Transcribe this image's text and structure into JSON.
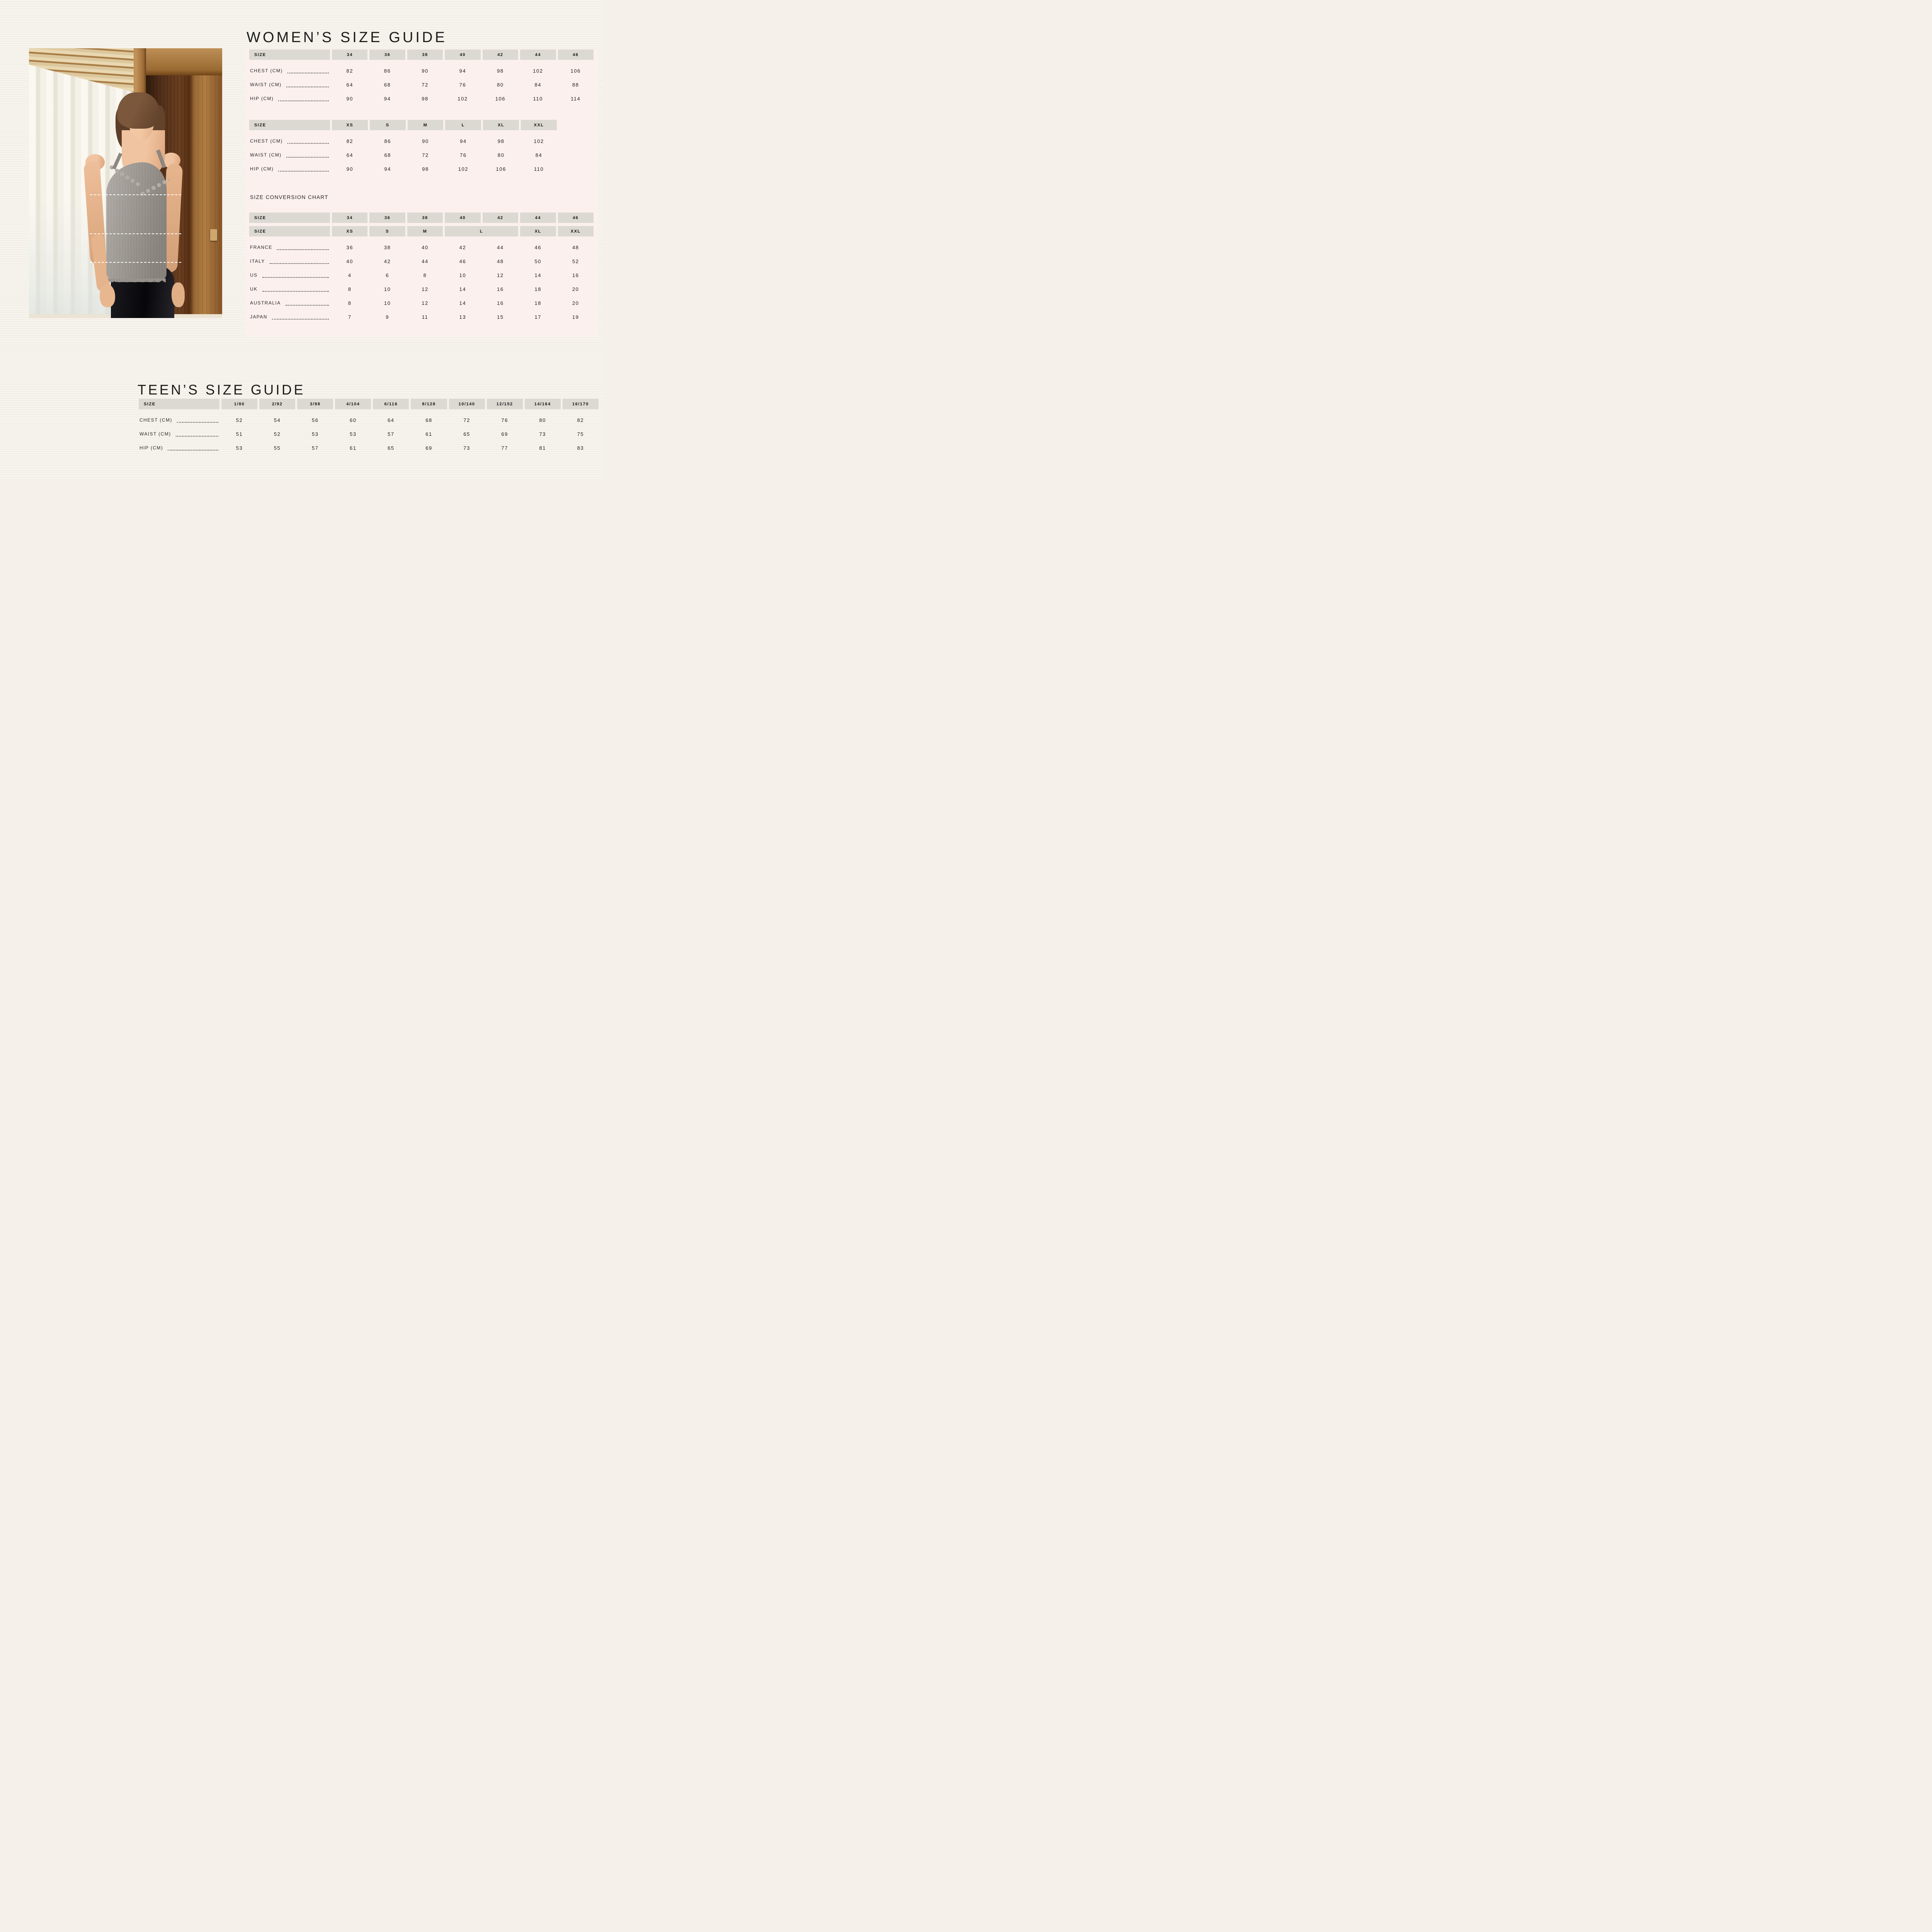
{
  "colors": {
    "page_bg": "#f5f1ea",
    "panel_bg": "#fbf0ee",
    "header_cell_bg": "#dcd9d3",
    "text": "#1d1d1b",
    "measure_line": "#ffffff"
  },
  "womens": {
    "title": "WOMEN’S SIZE GUIDE",
    "numeric_table": {
      "head": [
        [
          "SIZE",
          "34",
          "36",
          "38",
          "40",
          "42",
          "44",
          "46"
        ]
      ],
      "rows": [
        {
          "label": "CHEST (CM)",
          "values": [
            "82",
            "86",
            "90",
            "94",
            "98",
            "102",
            "106"
          ]
        },
        {
          "label": "WAIST (CM)",
          "values": [
            "64",
            "68",
            "72",
            "76",
            "80",
            "84",
            "88"
          ]
        },
        {
          "label": "HIP (CM)",
          "values": [
            "90",
            "94",
            "98",
            "102",
            "106",
            "110",
            "114"
          ]
        }
      ]
    },
    "alpha_table": {
      "head": [
        [
          "SIZE",
          "XS",
          "S",
          "M",
          "L",
          "XL",
          "XXL"
        ]
      ],
      "rows": [
        {
          "label": "CHEST (CM)",
          "values": [
            "82",
            "86",
            "90",
            "94",
            "98",
            "102"
          ]
        },
        {
          "label": "WAIST (CM)",
          "values": [
            "64",
            "68",
            "72",
            "76",
            "80",
            "84"
          ]
        },
        {
          "label": "HIP (CM)",
          "values": [
            "90",
            "94",
            "98",
            "102",
            "106",
            "110"
          ]
        }
      ]
    },
    "conversion": {
      "label": "SIZE CONVERSION CHART",
      "table": {
        "head": [
          [
            "SIZE",
            "34",
            "36",
            "38",
            "40",
            "42",
            "44",
            "46"
          ],
          [
            "SIZE",
            "XS",
            "S",
            "M",
            {
              "t": "L",
              "s": 2
            },
            "XL",
            "XXL"
          ]
        ],
        "rows": [
          {
            "label": "FRANCE",
            "values": [
              "36",
              "38",
              "40",
              "42",
              "44",
              "46",
              "48"
            ]
          },
          {
            "label": "ITALY",
            "values": [
              "40",
              "42",
              "44",
              "46",
              "48",
              "50",
              "52"
            ]
          },
          {
            "label": "US",
            "values": [
              "4",
              "6",
              "8",
              "10",
              "12",
              "14",
              "16"
            ]
          },
          {
            "label": "UK",
            "values": [
              "8",
              "10",
              "12",
              "14",
              "16",
              "18",
              "20"
            ]
          },
          {
            "label": "AUSTRALIA",
            "values": [
              "8",
              "10",
              "12",
              "14",
              "16",
              "18",
              "20"
            ]
          },
          {
            "label": "JAPAN",
            "values": [
              "7",
              "9",
              "11",
              "13",
              "15",
              "17",
              "19"
            ]
          }
        ]
      }
    }
  },
  "teens": {
    "title": "TEEN’S SIZE GUIDE",
    "table": {
      "head": [
        [
          "SIZE",
          "1/80",
          "2/92",
          "3/98",
          "4/104",
          "6/116",
          "8/128",
          "10/140",
          "12/152",
          "14/164",
          "16/170"
        ]
      ],
      "rows": [
        {
          "label": "CHEST (CM)",
          "values": [
            "52",
            "54",
            "56",
            "60",
            "64",
            "68",
            "72",
            "76",
            "80",
            "82"
          ]
        },
        {
          "label": "WAIST (CM)",
          "values": [
            "51",
            "52",
            "53",
            "53",
            "57",
            "61",
            "65",
            "69",
            "73",
            "75"
          ]
        },
        {
          "label": "HIP (CM)",
          "values": [
            "53",
            "55",
            "57",
            "61",
            "65",
            "69",
            "73",
            "77",
            "81",
            "83"
          ]
        }
      ]
    }
  },
  "photo": {
    "measurement_lines": [
      "chest",
      "waist",
      "hip"
    ]
  }
}
